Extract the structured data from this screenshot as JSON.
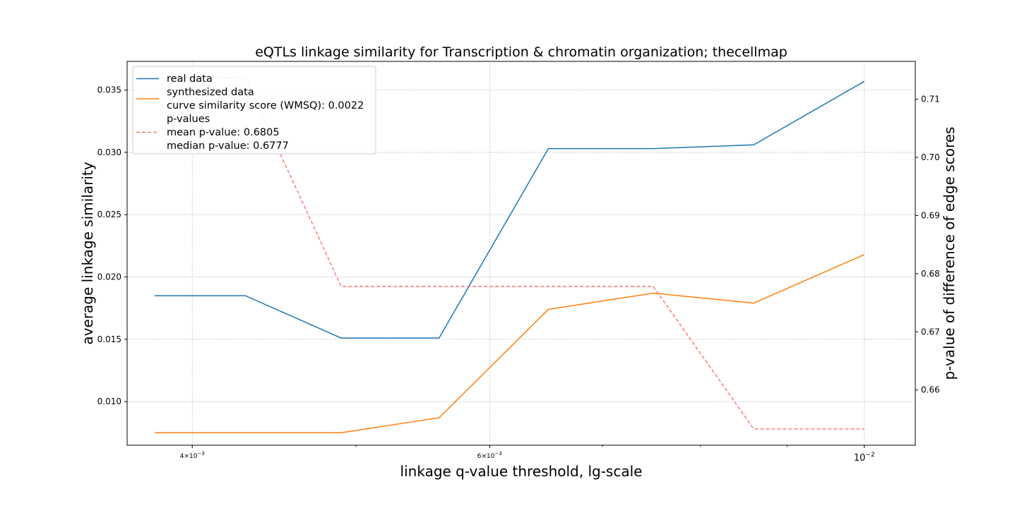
{
  "chart_data": {
    "type": "line",
    "title": "eQTLs linkage similarity for Transcription & chromatin organization; thecellmap",
    "xlabel": "linkage q-value threshold, lg-scale",
    "ylabel_left": "average linkage similarity",
    "ylabel_right": "p-value of difference of edge scores",
    "x_scale": "log",
    "xlim": [
      0.00366,
      0.01072
    ],
    "ylim_left": [
      0.0065,
      0.0373
    ],
    "ylim_right": [
      0.6505,
      0.7165
    ],
    "grid": true,
    "legend_position": "top-left",
    "x": [
      0.0038,
      0.0043,
      0.0049,
      0.0056,
      0.0065,
      0.0075,
      0.0086,
      0.01
    ],
    "x_ticks": [
      {
        "value": 0.004,
        "base": "4",
        "exp": "-3"
      },
      {
        "value": 0.006,
        "base": "6",
        "exp": "-3"
      },
      {
        "value": 0.01,
        "base": "10",
        "exp": "-2"
      }
    ],
    "x_minor_ticks": [
      0.003,
      0.005,
      0.007,
      0.008,
      0.009
    ],
    "y_left_ticks": [
      "0.010",
      "0.015",
      "0.020",
      "0.025",
      "0.030",
      "0.035"
    ],
    "y_right_ticks": [
      "0.66",
      "0.67",
      "0.68",
      "0.69",
      "0.70",
      "0.71"
    ],
    "series": [
      {
        "name": "real data",
        "axis": "left",
        "color": "#1f77b4",
        "style": "solid",
        "values": [
          0.0185,
          0.0185,
          0.0151,
          0.0151,
          0.0303,
          0.0303,
          0.0306,
          0.0357
        ]
      },
      {
        "name": "synthesized data",
        "axis": "left",
        "color": "#ff7f0e",
        "style": "solid",
        "values": [
          0.0075,
          0.0075,
          0.0075,
          0.0087,
          0.0174,
          0.0187,
          0.0179,
          0.0218
        ]
      },
      {
        "name": "p-values",
        "axis": "right",
        "color": "#ff7070",
        "style": "dashed",
        "values": [
          0.7137,
          0.7137,
          0.6778,
          0.6778,
          0.6778,
          0.6778,
          0.6533,
          0.6533
        ]
      }
    ],
    "legend": [
      {
        "series": 0,
        "lines": [
          "real data"
        ]
      },
      {
        "series": 1,
        "lines": [
          "synthesized data",
          "curve similarity score (WMSQ): 0.0022"
        ]
      },
      {
        "series": 2,
        "lines": [
          "p-values",
          "mean p-value: 0.6805",
          "median p-value: 0.6777"
        ]
      }
    ]
  }
}
